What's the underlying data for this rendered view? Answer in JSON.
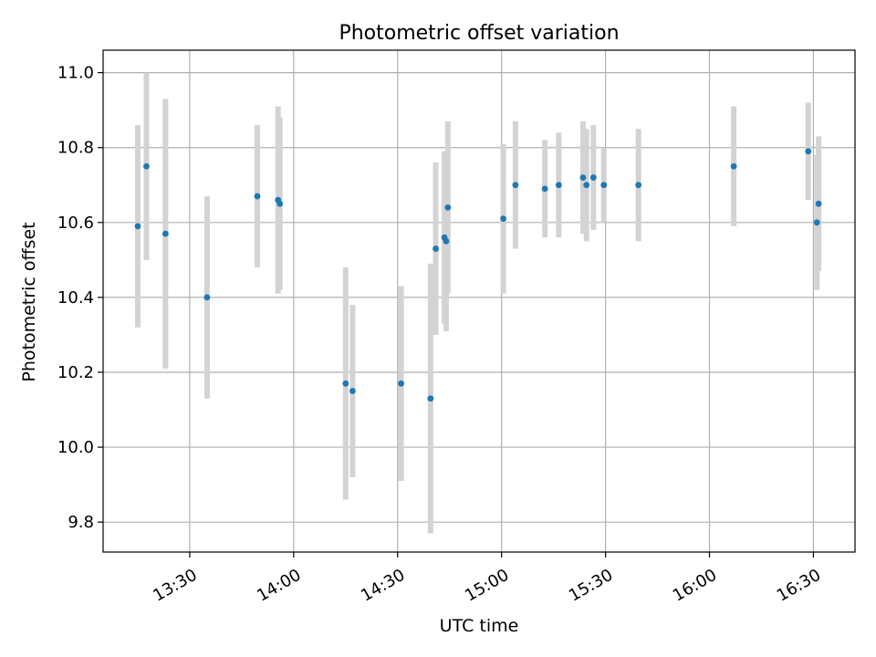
{
  "chart_data": {
    "type": "scatter",
    "title": "Photometric offset variation",
    "xlabel": "UTC time",
    "ylabel": "Photometric offset",
    "xlim": [
      "13:05",
      "16:42"
    ],
    "ylim": [
      9.72,
      11.06
    ],
    "grid": true,
    "x_ticks": [
      "13:30",
      "14:00",
      "14:30",
      "15:00",
      "15:30",
      "16:00",
      "16:30"
    ],
    "y_ticks": [
      "9.8",
      "10.0",
      "10.2",
      "10.4",
      "10.6",
      "10.8",
      "11.0"
    ],
    "colors": {
      "points": "#1f77b4",
      "errorbars": "#d3d3d3",
      "grid": "#b0b0b0"
    },
    "points": [
      {
        "x": "13:15:00",
        "y": 10.59,
        "yerr": 0.27
      },
      {
        "x": "13:17:30",
        "y": 10.75,
        "yerr": 0.25
      },
      {
        "x": "13:23:00",
        "y": 10.57,
        "yerr": 0.36
      },
      {
        "x": "13:35:00",
        "y": 10.4,
        "yerr": 0.27
      },
      {
        "x": "13:49:30",
        "y": 10.67,
        "yerr": 0.19
      },
      {
        "x": "13:55:30",
        "y": 10.66,
        "yerr": 0.25
      },
      {
        "x": "13:56:00",
        "y": 10.65,
        "yerr": 0.23
      },
      {
        "x": "14:15:00",
        "y": 10.17,
        "yerr": 0.31
      },
      {
        "x": "14:17:00",
        "y": 10.15,
        "yerr": 0.23
      },
      {
        "x": "14:31:00",
        "y": 10.17,
        "yerr": 0.26
      },
      {
        "x": "14:39:30",
        "y": 10.13,
        "yerr": 0.36
      },
      {
        "x": "14:41:00",
        "y": 10.53,
        "yerr": 0.23
      },
      {
        "x": "14:43:30",
        "y": 10.56,
        "yerr": 0.23
      },
      {
        "x": "14:44:00",
        "y": 10.55,
        "yerr": 0.24
      },
      {
        "x": "14:44:30",
        "y": 10.64,
        "yerr": 0.23
      },
      {
        "x": "15:00:30",
        "y": 10.61,
        "yerr": 0.2
      },
      {
        "x": "15:04:00",
        "y": 10.7,
        "yerr": 0.17
      },
      {
        "x": "15:12:30",
        "y": 10.69,
        "yerr": 0.13
      },
      {
        "x": "15:16:30",
        "y": 10.7,
        "yerr": 0.14
      },
      {
        "x": "15:23:30",
        "y": 10.72,
        "yerr": 0.15
      },
      {
        "x": "15:24:30",
        "y": 10.7,
        "yerr": 0.15
      },
      {
        "x": "15:26:30",
        "y": 10.72,
        "yerr": 0.14
      },
      {
        "x": "15:29:30",
        "y": 10.7,
        "yerr": 0.1
      },
      {
        "x": "15:39:30",
        "y": 10.7,
        "yerr": 0.15
      },
      {
        "x": "16:07:00",
        "y": 10.75,
        "yerr": 0.16
      },
      {
        "x": "16:28:30",
        "y": 10.79,
        "yerr": 0.13
      },
      {
        "x": "16:31:00",
        "y": 10.6,
        "yerr": 0.18
      },
      {
        "x": "16:31:30",
        "y": 10.65,
        "yerr": 0.18
      }
    ]
  }
}
